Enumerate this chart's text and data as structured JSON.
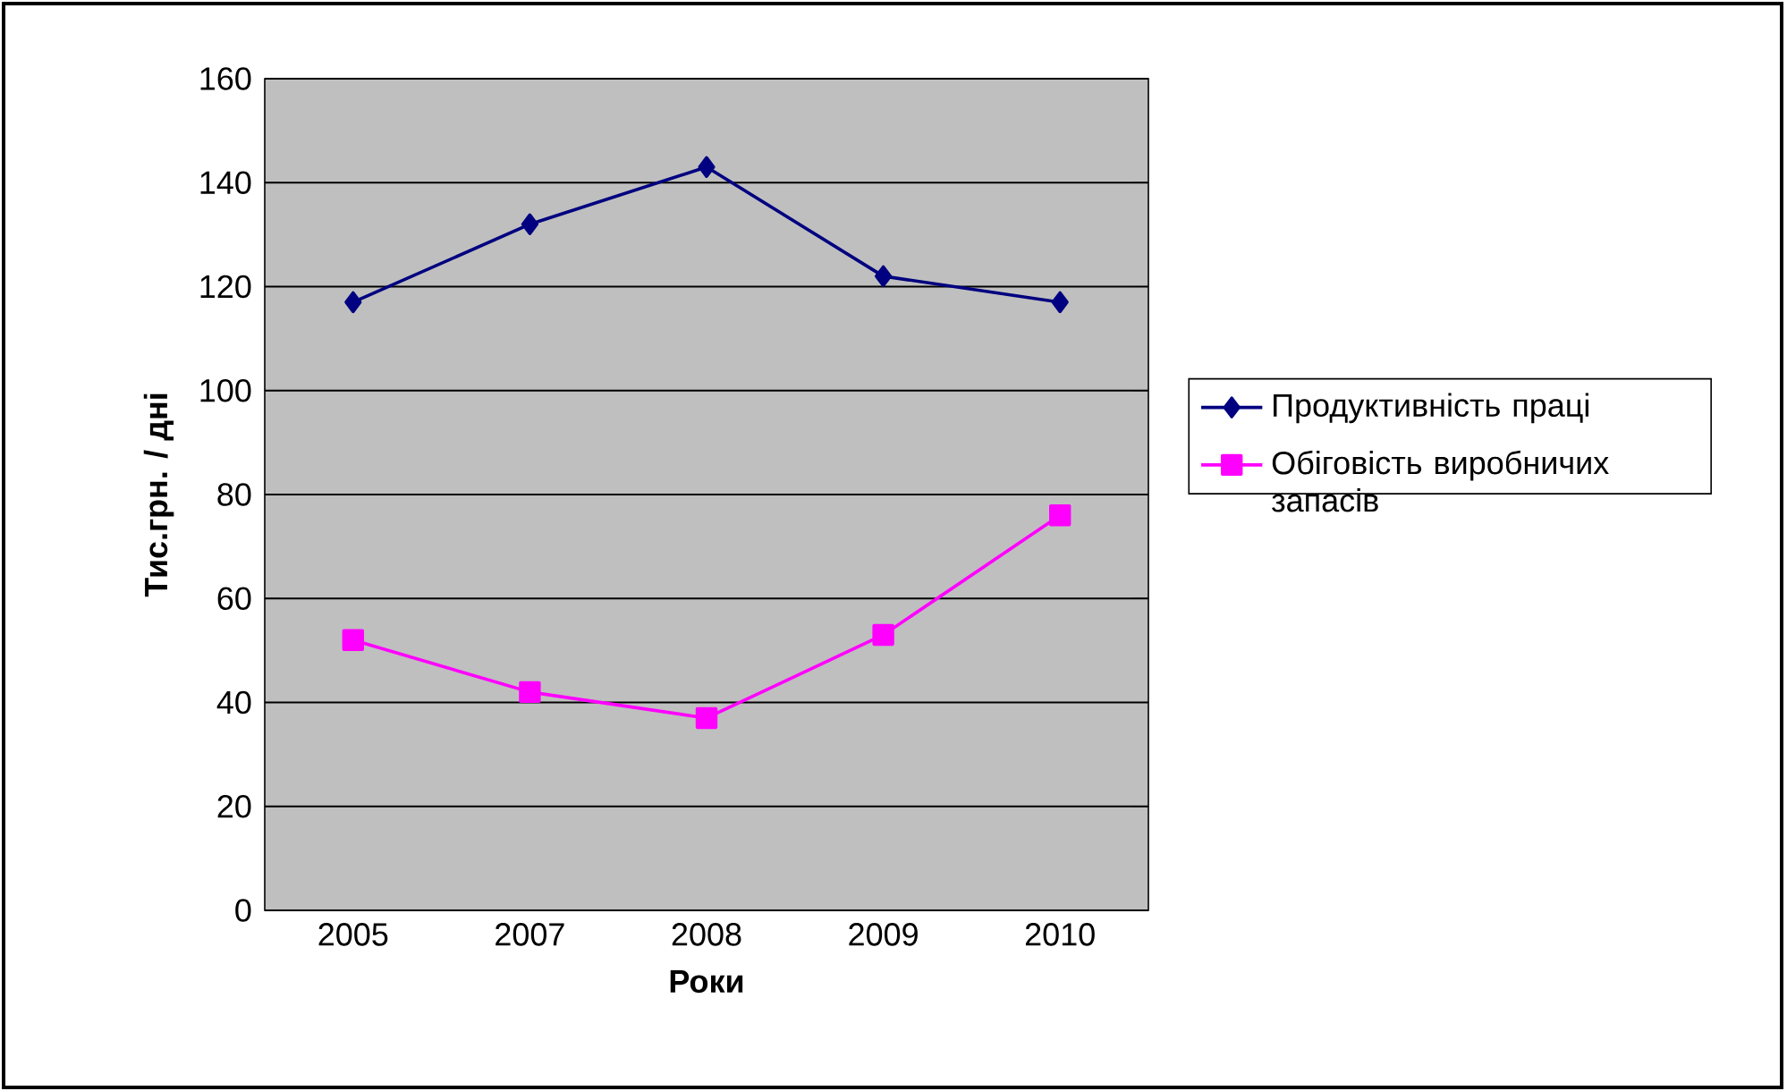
{
  "chart_data": {
    "type": "line",
    "xlabel": "Роки",
    "ylabel": "Тис.грн.  / дні",
    "categories": [
      "2005",
      "2007",
      "2008",
      "2009",
      "2010"
    ],
    "series": [
      {
        "name": "Продуктивність праці",
        "color": "#000080",
        "marker": "diamond",
        "values": [
          117,
          132,
          143,
          122,
          117
        ]
      },
      {
        "name": "Обіговість виробничих запасів",
        "color": "#ff00ff",
        "marker": "square",
        "values": [
          52,
          42,
          37,
          53,
          76
        ]
      }
    ],
    "ylim": [
      0,
      160
    ],
    "yticks": [
      0,
      20,
      40,
      60,
      80,
      100,
      120,
      140,
      160
    ],
    "grid": "y",
    "legend": "right"
  }
}
